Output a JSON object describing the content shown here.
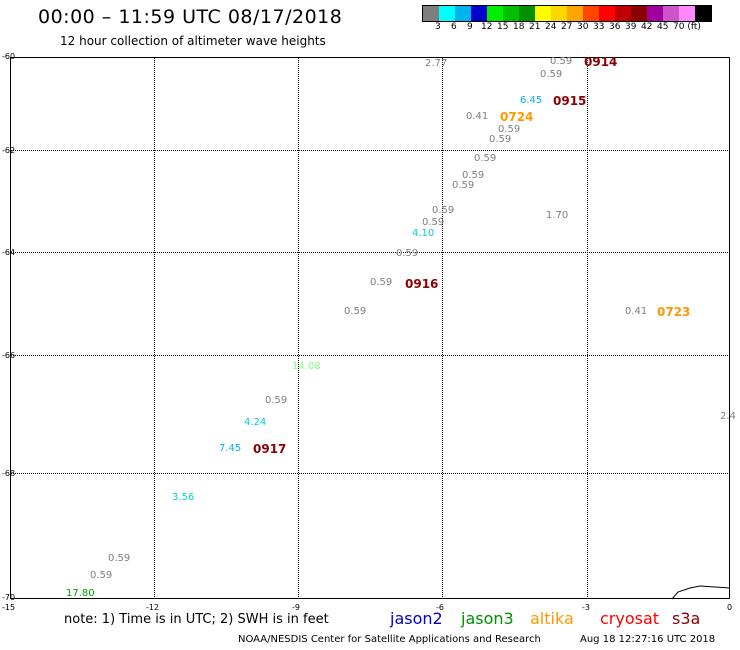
{
  "header": {
    "title": "00:00 – 11:59 UTC 08/17/2018",
    "subtitle": "12 hour collection of altimeter wave heights"
  },
  "colorbar": {
    "colors": [
      "#7f7f7f",
      "#00ffff",
      "#00b2ee",
      "#0000cd",
      "#00ee00",
      "#00c000",
      "#009000",
      "#ffff00",
      "#ffd700",
      "#ffa500",
      "#ff4500",
      "#ff0000",
      "#c00000",
      "#8b0000",
      "#a000a0",
      "#cc55cc",
      "#ff88ff",
      "#000000"
    ],
    "labels": [
      "3",
      "6",
      "9",
      "12",
      "15",
      "18",
      "21",
      "24",
      "27",
      "30",
      "33",
      "36",
      "39",
      "42",
      "45",
      "70 (ft)"
    ]
  },
  "axes": {
    "lat_labels": [
      "-60",
      "-62",
      "-64",
      "-66",
      "-68",
      "-70"
    ],
    "lon_labels": [
      "-15",
      "-12",
      "-9",
      "-6",
      "-3",
      "0"
    ]
  },
  "observations": [
    {
      "text": "2.77",
      "color": "#7f7f7f"
    },
    {
      "text": "0.59",
      "color": "#7f7f7f"
    },
    {
      "text": "0.59",
      "color": "#7f7f7f"
    },
    {
      "text": "6.45",
      "color": "#00b2ee"
    },
    {
      "text": "0.41",
      "color": "#7f7f7f"
    },
    {
      "text": "0.59",
      "color": "#7f7f7f"
    },
    {
      "text": "0.59",
      "color": "#7f7f7f"
    },
    {
      "text": "0.59",
      "color": "#7f7f7f"
    },
    {
      "text": "0.59",
      "color": "#7f7f7f"
    },
    {
      "text": "0.59",
      "color": "#7f7f7f"
    },
    {
      "text": "1.70",
      "color": "#7f7f7f"
    },
    {
      "text": "0.59",
      "color": "#7f7f7f"
    },
    {
      "text": "0.59",
      "color": "#7f7f7f"
    },
    {
      "text": "4.10",
      "color": "#00ced1"
    },
    {
      "text": "0.59",
      "color": "#7f7f7f"
    },
    {
      "text": "0.59",
      "color": "#7f7f7f"
    },
    {
      "text": "0.59",
      "color": "#7f7f7f"
    },
    {
      "text": "0.41",
      "color": "#7f7f7f"
    },
    {
      "text": "14.08",
      "color": "#7fff7f"
    },
    {
      "text": "0.59",
      "color": "#7f7f7f"
    },
    {
      "text": "4.24",
      "color": "#00ced1"
    },
    {
      "text": "7.45",
      "color": "#00b2ee"
    },
    {
      "text": "2.4",
      "color": "#7f7f7f"
    },
    {
      "text": "3.56",
      "color": "#00ced1"
    },
    {
      "text": "0.59",
      "color": "#7f7f7f"
    },
    {
      "text": "0.59",
      "color": "#7f7f7f"
    },
    {
      "text": "17.80",
      "color": "#00a000"
    }
  ],
  "passes": [
    {
      "text": "0914",
      "color": "#8b0000"
    },
    {
      "text": "0915",
      "color": "#8b0000"
    },
    {
      "text": "0724",
      "color": "#ff9900"
    },
    {
      "text": "0916",
      "color": "#8b0000"
    },
    {
      "text": "0723",
      "color": "#ff9900"
    },
    {
      "text": "0917",
      "color": "#8b0000"
    }
  ],
  "footer": {
    "note": "note: 1) Time is in UTC; 2) SWH is in feet",
    "legend": [
      {
        "text": "jason2",
        "color": "#0000cd"
      },
      {
        "text": "jason3",
        "color": "#009000"
      },
      {
        "text": "altika",
        "color": "#ff9900"
      },
      {
        "text": "cryosat",
        "color": "#ff0000"
      },
      {
        "text": "s3a",
        "color": "#8b0000"
      }
    ],
    "credit": "NOAA/NESDIS Center for Satellite Applications and Research",
    "timestamp": "Aug 18 12:27:16 UTC 2018"
  }
}
